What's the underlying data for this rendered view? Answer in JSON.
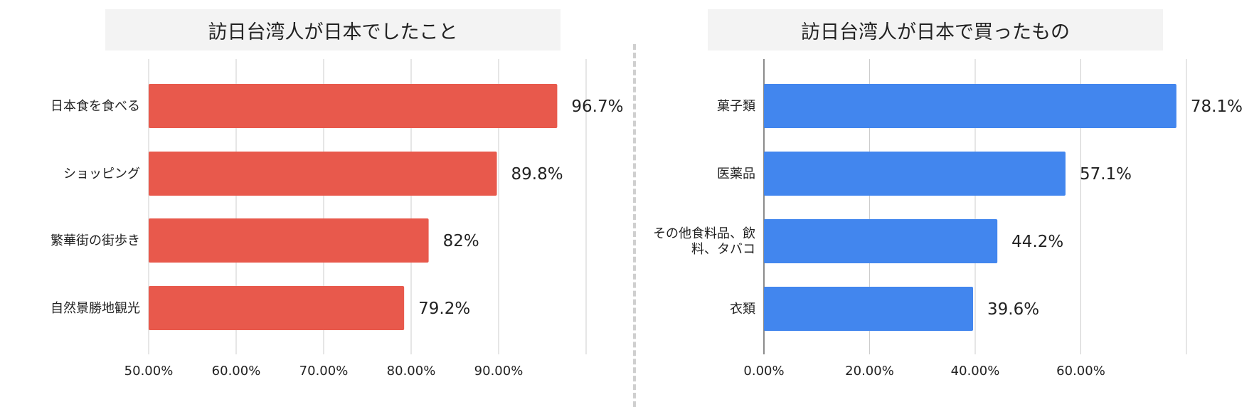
{
  "chart_data": [
    {
      "type": "bar",
      "orientation": "horizontal",
      "title": "訪日台湾人が日本でしたこと",
      "categories": [
        "日本食を食べる",
        "ショッピング",
        "繁華街の街歩き",
        "自然景勝地観光"
      ],
      "values": [
        96.7,
        89.8,
        82,
        79.2
      ],
      "value_labels": [
        "96.7%",
        "89.8%",
        "82%",
        "79.2%"
      ],
      "xlim": [
        50,
        100
      ],
      "xticks": [
        50,
        60,
        70,
        80,
        90,
        100
      ],
      "xtick_labels": [
        "50.00%",
        "60.00%",
        "70.00%",
        "80.00%",
        "90.00%"
      ],
      "grid": true,
      "bar_color": "#e8594c"
    },
    {
      "type": "bar",
      "orientation": "horizontal",
      "title": "訪日台湾人が日本で買ったもの",
      "categories": [
        "菓子類",
        "医薬品",
        "その他食料品、飲料、タバコ",
        "衣類"
      ],
      "category_lines": [
        [
          "菓子類"
        ],
        [
          "医薬品"
        ],
        [
          "その他食料品、飲",
          "料、タバコ"
        ],
        [
          "衣類"
        ]
      ],
      "values": [
        78.1,
        57.1,
        44.2,
        39.6
      ],
      "value_labels": [
        "78.1%",
        "57.1%",
        "44.2%",
        "39.6%"
      ],
      "xlim": [
        0,
        80
      ],
      "xticks": [
        0,
        20,
        40,
        60,
        80
      ],
      "xtick_labels": [
        "0.00%",
        "20.00%",
        "40.00%",
        "60.00%"
      ],
      "grid": true,
      "bar_color": "#4286ee"
    }
  ]
}
